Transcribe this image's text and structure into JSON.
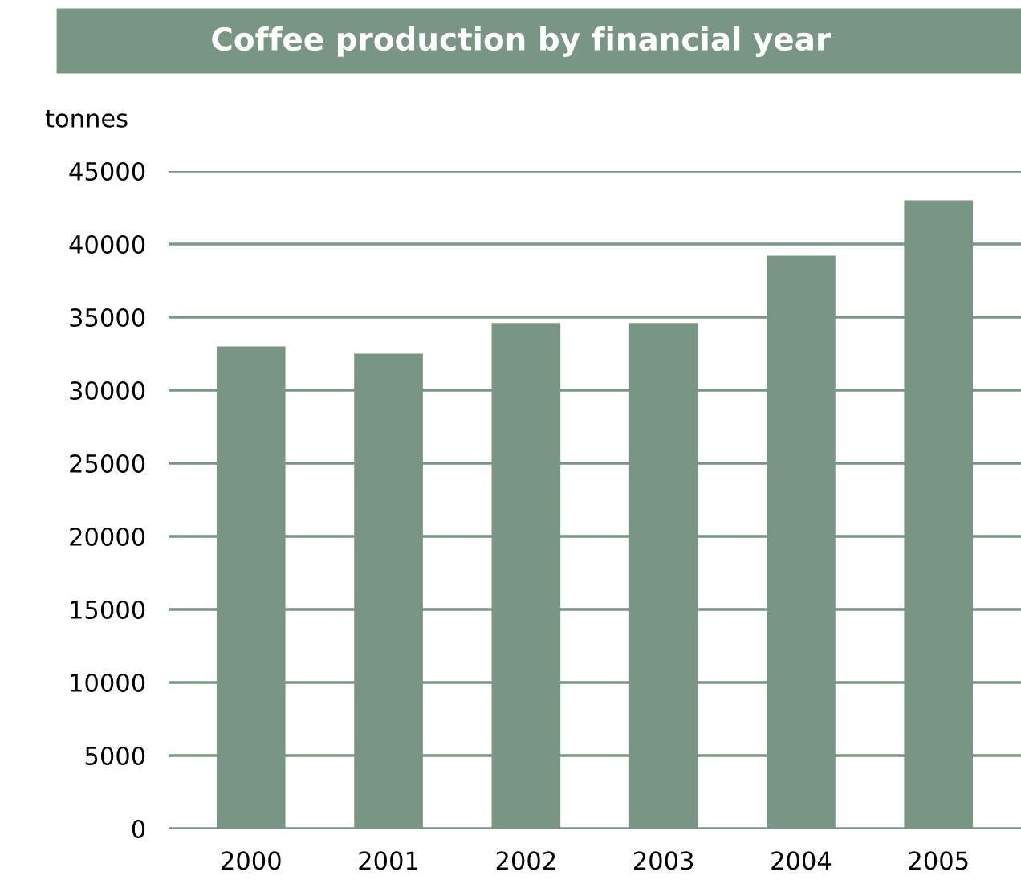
{
  "chart_data": {
    "type": "bar",
    "title": "Coffee production by financial year",
    "ylabel": "tonnes",
    "categories": [
      "2000",
      "2001",
      "2002",
      "2003",
      "2004",
      "2005"
    ],
    "values": [
      33000,
      32500,
      34600,
      34600,
      39200,
      43000
    ],
    "color": "#789683",
    "ylim": [
      0,
      45000
    ],
    "yticks": [
      0,
      5000,
      10000,
      15000,
      20000,
      25000,
      30000,
      35000,
      40000,
      45000
    ],
    "grid": "y"
  }
}
